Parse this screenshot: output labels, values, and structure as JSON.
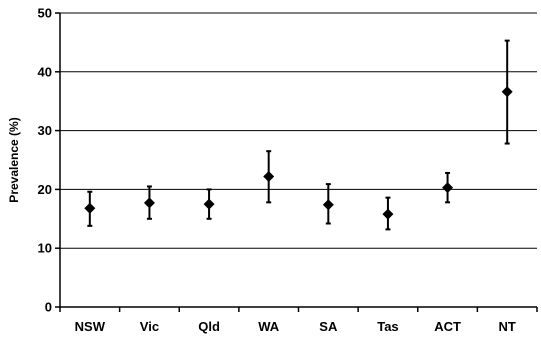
{
  "chart_data": {
    "type": "scatter",
    "title": "",
    "xlabel": "",
    "ylabel": "Prevalence (%)",
    "ylim": [
      0,
      50
    ],
    "yticks": [
      0,
      10,
      20,
      30,
      40,
      50
    ],
    "grid": true,
    "categories": [
      "NSW",
      "Vic",
      "Qld",
      "WA",
      "SA",
      "Tas",
      "ACT",
      "NT"
    ],
    "series": [
      {
        "values": [
          16.8,
          17.7,
          17.5,
          22.2,
          17.4,
          15.8,
          20.3,
          36.6
        ],
        "error_low": [
          13.8,
          15.0,
          15.0,
          17.8,
          14.2,
          13.2,
          17.8,
          27.8
        ],
        "error_high": [
          19.6,
          20.5,
          20.0,
          26.5,
          20.9,
          18.6,
          22.8,
          45.3
        ]
      }
    ],
    "colors": {
      "marker": "#000000",
      "grid": "#000000",
      "axis": "#000000"
    }
  }
}
